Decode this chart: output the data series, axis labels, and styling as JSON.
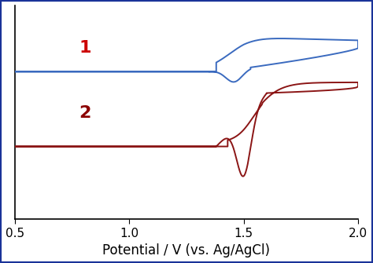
{
  "xlim": [
    0.5,
    2.0
  ],
  "ylim": [
    -1.0,
    1.0
  ],
  "xlabel": "Potential / V (vs. Ag/AgCl)",
  "xticks": [
    0.5,
    1.0,
    1.5,
    2.0
  ],
  "xlabel_fontsize": 12,
  "label1": "1",
  "label2": "2",
  "label1_color": "#cc0000",
  "label2_color": "#8b0000",
  "curve1_color": "#3a6abf",
  "curve2_color": "#8b1515",
  "border_color": "#1a3399",
  "bg_color": "#ffffff",
  "figsize": [
    4.74,
    3.35
  ],
  "dpi": 100
}
